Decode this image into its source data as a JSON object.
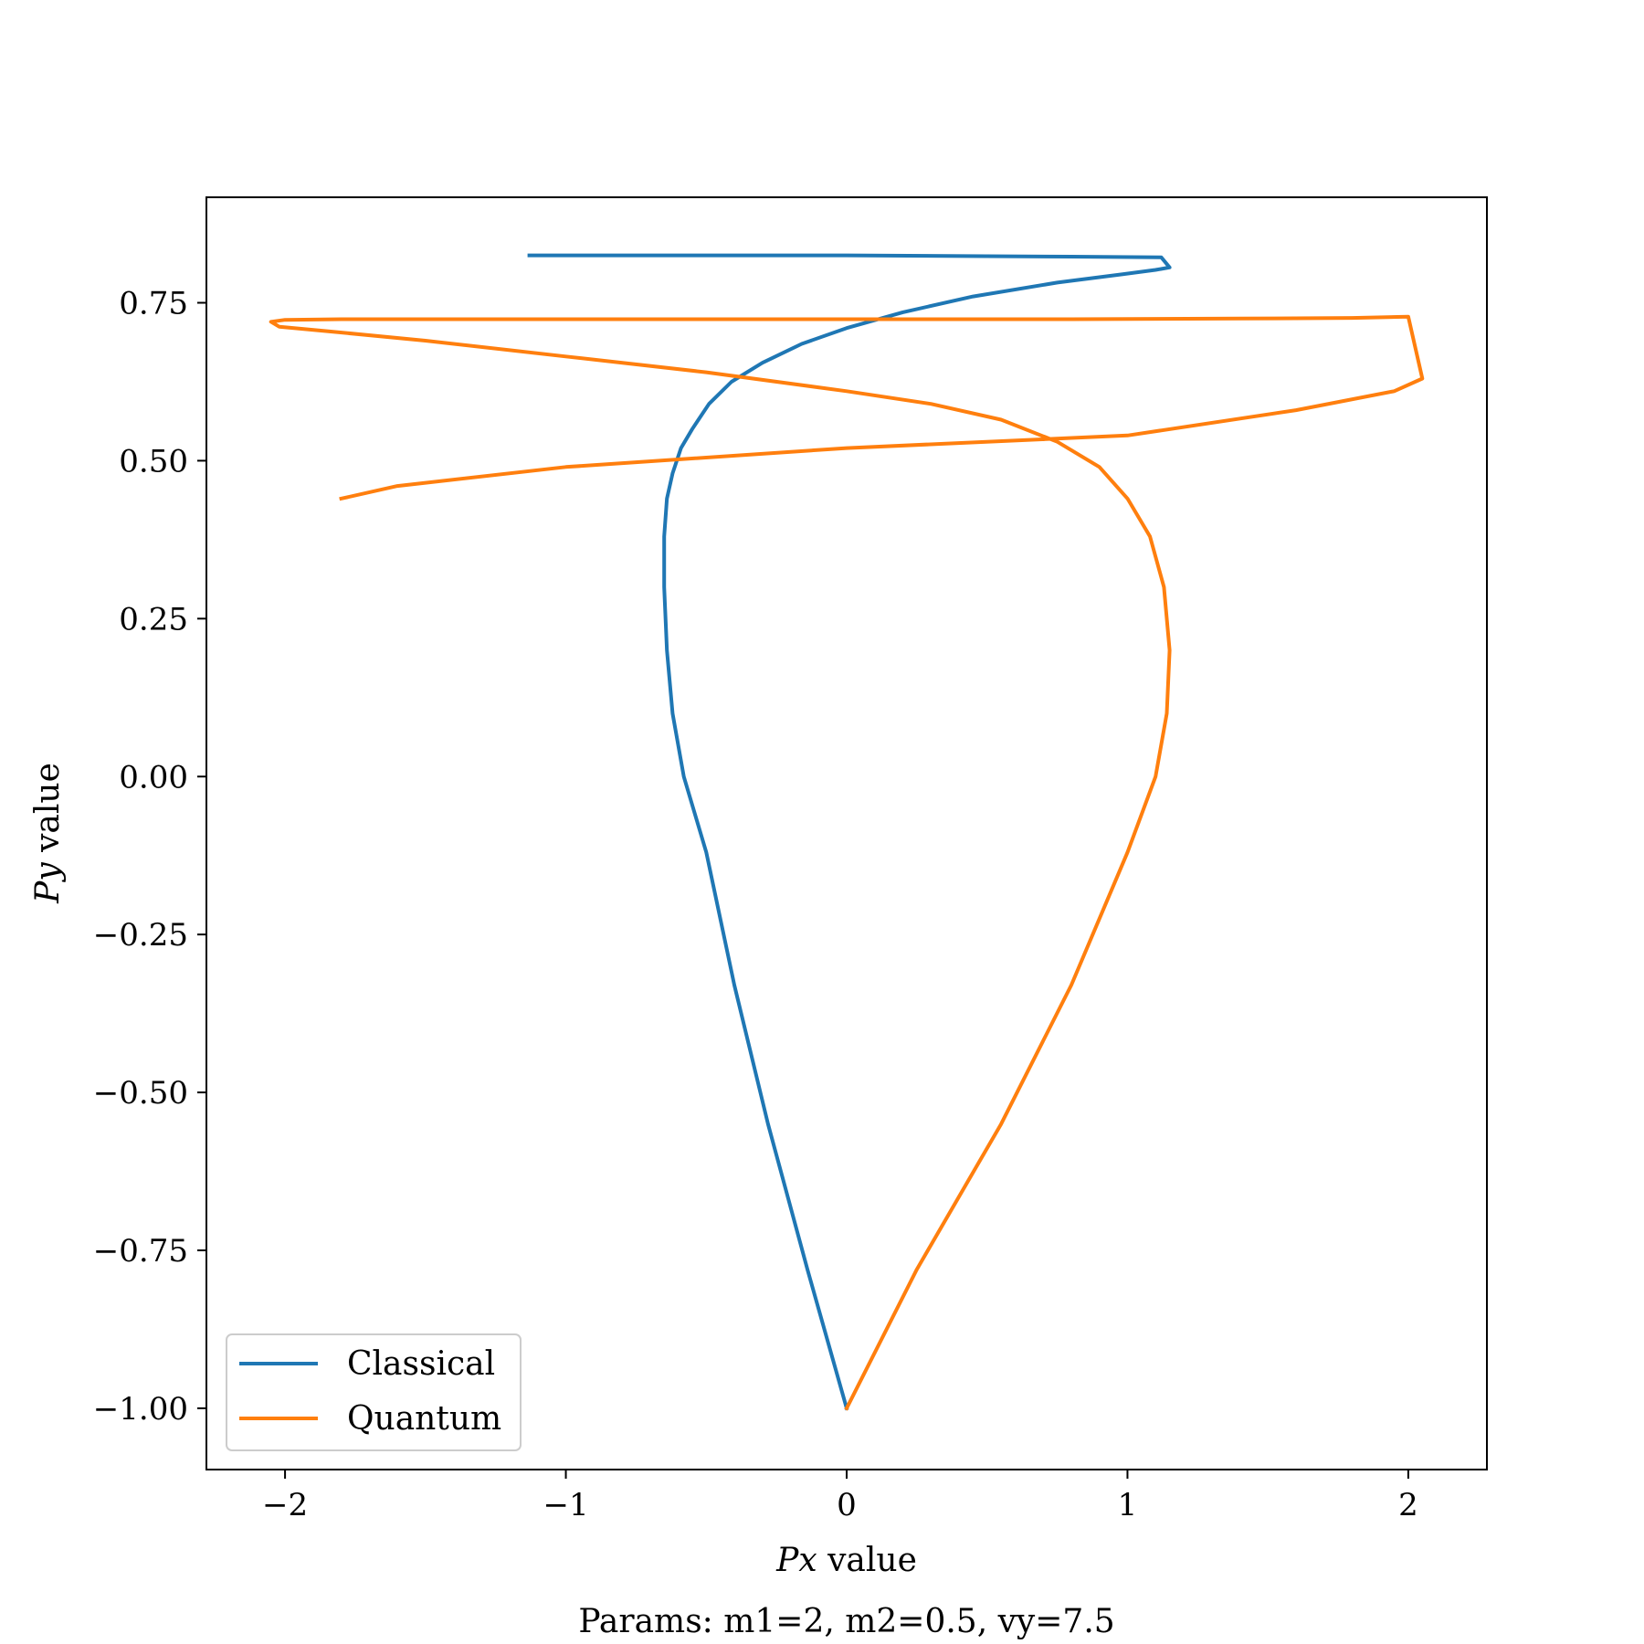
{
  "chart_data": {
    "type": "line",
    "xlabel_var": "Px",
    "xlabel_rest": " value",
    "ylabel_var": "Py",
    "ylabel_rest": " value",
    "caption": "Params: m1=2, m2=0.5, vy=7.5",
    "xlim": [
      -2.28,
      2.28
    ],
    "ylim": [
      -1.097,
      0.917
    ],
    "xticks": [
      -2,
      -1,
      0,
      1,
      2
    ],
    "xtick_labels": [
      "−2",
      "−1",
      "0",
      "1",
      "2"
    ],
    "yticks": [
      0.75,
      0.5,
      0.25,
      0.0,
      -0.25,
      -0.5,
      -0.75,
      -1.0
    ],
    "ytick_labels": [
      "0.75",
      "0.50",
      "0.25",
      "0.00",
      "−0.25",
      "−0.50",
      "−0.75",
      "−1.00"
    ],
    "grid": false,
    "legend_position": "lower-left",
    "series": [
      {
        "name": "Classical",
        "color": "#1f77b4",
        "x": [
          0.0,
          -0.14,
          -0.28,
          -0.4,
          -0.5,
          -0.58,
          -0.62,
          -0.64,
          -0.65,
          -0.65,
          -0.64,
          -0.62,
          -0.59,
          -0.55,
          -0.49,
          -0.41,
          -0.3,
          -0.16,
          0.0,
          0.2,
          0.45,
          0.75,
          0.98,
          1.1,
          1.15,
          1.12,
          0.8,
          0.0,
          -0.6,
          -1.13
        ],
        "y": [
          -1.0,
          -0.78,
          -0.55,
          -0.33,
          -0.12,
          0.0,
          0.1,
          0.2,
          0.3,
          0.38,
          0.44,
          0.48,
          0.52,
          0.55,
          0.59,
          0.625,
          0.655,
          0.685,
          0.71,
          0.735,
          0.76,
          0.782,
          0.795,
          0.802,
          0.806,
          0.822,
          0.823,
          0.825,
          0.825,
          0.825
        ]
      },
      {
        "name": "Quantum",
        "color": "#ff7f0e",
        "x": [
          0.0,
          0.25,
          0.55,
          0.8,
          1.0,
          1.1,
          1.14,
          1.15,
          1.13,
          1.08,
          1.0,
          0.9,
          0.75,
          0.55,
          0.3,
          0.0,
          -0.5,
          -1.0,
          -1.5,
          -1.85,
          -2.02,
          -2.05,
          -2.0,
          -1.8,
          -1.4,
          -0.8,
          0.0,
          0.8,
          1.4,
          1.8,
          2.0,
          2.05,
          1.95,
          1.6,
          1.0,
          0.0,
          -1.0,
          -1.6,
          -1.8
        ],
        "y": [
          -1.0,
          -0.78,
          -0.55,
          -0.33,
          -0.12,
          0.0,
          0.1,
          0.2,
          0.3,
          0.38,
          0.44,
          0.49,
          0.53,
          0.565,
          0.59,
          0.61,
          0.64,
          0.665,
          0.69,
          0.705,
          0.712,
          0.72,
          0.723,
          0.724,
          0.724,
          0.724,
          0.724,
          0.724,
          0.725,
          0.726,
          0.728,
          0.63,
          0.61,
          0.58,
          0.54,
          0.52,
          0.49,
          0.46,
          0.44
        ]
      }
    ]
  }
}
